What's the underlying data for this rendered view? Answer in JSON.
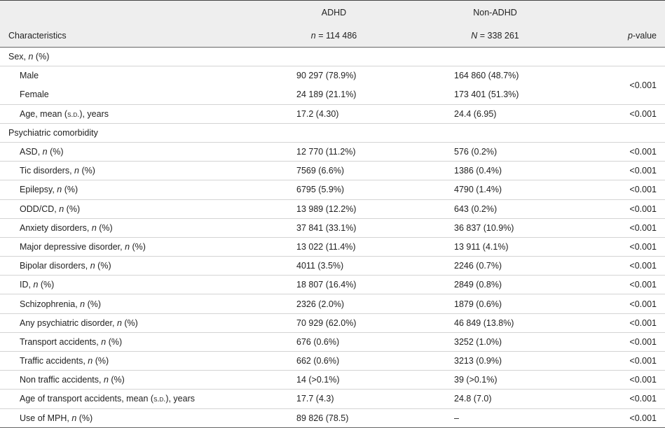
{
  "table": {
    "header": {
      "characteristics": [
        "Characteristics"
      ],
      "adhd": {
        "name": [
          "ADHD"
        ],
        "count": [
          {
            "italic": "n"
          },
          " = 114 486"
        ]
      },
      "non_adhd": {
        "name": [
          "Non-ADHD"
        ],
        "count": [
          {
            "italic": "N"
          },
          " = 338 261"
        ]
      },
      "p": [
        {
          "italic": "p"
        },
        "-value"
      ]
    },
    "sections": [
      {
        "title": [
          "Sex, ",
          {
            "italic": "n"
          },
          " (%)"
        ],
        "rows": [
          {
            "label": [
              "Male"
            ],
            "adhd": "90 297 (78.9%)",
            "non_adhd": "164 860 (48.7%)",
            "p": "<0.001"
          },
          {
            "label": [
              "Female"
            ],
            "adhd": "24 189 (21.1%)",
            "non_adhd": "173 401 (51.3%)"
          },
          {
            "label": [
              "Age, mean (",
              {
                "smallcaps": "s.d."
              },
              "), years"
            ],
            "adhd": "17.2 (4.30)",
            "non_adhd": "24.4 (6.95)",
            "p": "<0.001"
          }
        ]
      },
      {
        "title": [
          "Psychiatric comorbidity"
        ],
        "rows": [
          {
            "label": [
              "ASD, ",
              {
                "italic": "n"
              },
              " (%)"
            ],
            "adhd": "12 770 (11.2%)",
            "non_adhd": "576 (0.2%)",
            "p": "<0.001"
          },
          {
            "label": [
              "Tic disorders, ",
              {
                "italic": "n"
              },
              " (%)"
            ],
            "adhd": "7569 (6.6%)",
            "non_adhd": "1386 (0.4%)",
            "p": "<0.001"
          },
          {
            "label": [
              "Epilepsy, ",
              {
                "italic": "n"
              },
              " (%)"
            ],
            "adhd": "6795 (5.9%)",
            "non_adhd": "4790 (1.4%)",
            "p": "<0.001"
          },
          {
            "label": [
              "ODD/CD, ",
              {
                "italic": "n"
              },
              " (%)"
            ],
            "adhd": "13 989 (12.2%)",
            "non_adhd": "643 (0.2%)",
            "p": "<0.001"
          },
          {
            "label": [
              "Anxiety disorders, ",
              {
                "italic": "n"
              },
              " (%)"
            ],
            "adhd": "37 841 (33.1%)",
            "non_adhd": "36 837 (10.9%)",
            "p": "<0.001"
          },
          {
            "label": [
              "Major depressive disorder, ",
              {
                "italic": "n"
              },
              " (%)"
            ],
            "adhd": "13 022 (11.4%)",
            "non_adhd": "13 911 (4.1%)",
            "p": "<0.001"
          },
          {
            "label": [
              "Bipolar disorders, ",
              {
                "italic": "n"
              },
              " (%)"
            ],
            "adhd": "4011 (3.5%)",
            "non_adhd": "2246 (0.7%)",
            "p": "<0.001"
          },
          {
            "label": [
              "ID, ",
              {
                "italic": "n"
              },
              " (%)"
            ],
            "adhd": "18 807 (16.4%)",
            "non_adhd": "2849 (0.8%)",
            "p": "<0.001"
          },
          {
            "label": [
              "Schizophrenia, ",
              {
                "italic": "n"
              },
              " (%)"
            ],
            "adhd": "2326 (2.0%)",
            "non_adhd": "1879 (0.6%)",
            "p": "<0.001"
          },
          {
            "label": [
              "Any psychiatric disorder, ",
              {
                "italic": "n"
              },
              " (%)"
            ],
            "adhd": "70 929 (62.0%)",
            "non_adhd": "46 849 (13.8%)",
            "p": "<0.001"
          },
          {
            "label": [
              "Transport accidents, ",
              {
                "italic": "n"
              },
              " (%)"
            ],
            "adhd": "676 (0.6%)",
            "non_adhd": "3252 (1.0%)",
            "p": "<0.001"
          },
          {
            "label": [
              "Traffic accidents, ",
              {
                "italic": "n"
              },
              " (%)"
            ],
            "adhd": "662 (0.6%)",
            "non_adhd": "3213 (0.9%)",
            "p": "<0.001"
          },
          {
            "label": [
              "Non traffic accidents, ",
              {
                "italic": "n"
              },
              " (%)"
            ],
            "adhd": "14 (>0.1%)",
            "non_adhd": "39 (>0.1%)",
            "p": "<0.001"
          },
          {
            "label": [
              "Age of transport accidents, mean (",
              {
                "smallcaps": "s.d."
              },
              "), years"
            ],
            "adhd": "17.7 (4.3)",
            "non_adhd": "24.8 (7.0)",
            "p": "<0.001"
          },
          {
            "label": [
              "Use of MPH, ",
              {
                "italic": "n"
              },
              " (%)"
            ],
            "adhd": "89 826 (78.5)",
            "non_adhd": "–",
            "p": "<0.001"
          }
        ]
      }
    ]
  }
}
